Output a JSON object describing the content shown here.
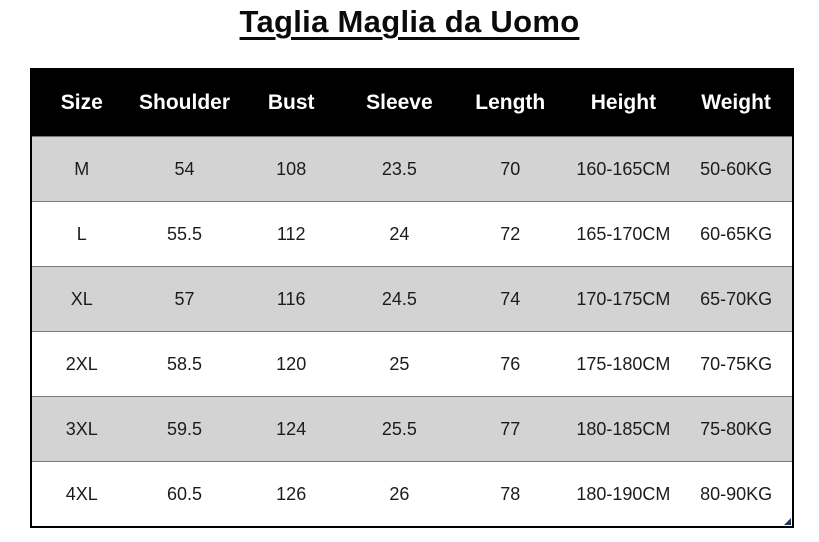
{
  "title": "Taglia Maglia da Uomo",
  "table": {
    "headers": [
      "Size",
      "Shoulder",
      "Bust",
      "Sleeve",
      "Length",
      "Height",
      "Weight"
    ],
    "rows": [
      [
        "M",
        "54",
        "108",
        "23.5",
        "70",
        "160-165CM",
        "50-60KG"
      ],
      [
        "L",
        "55.5",
        "112",
        "24",
        "72",
        "165-170CM",
        "60-65KG"
      ],
      [
        "XL",
        "57",
        "116",
        "24.5",
        "74",
        "170-175CM",
        "65-70KG"
      ],
      [
        "2XL",
        "58.5",
        "120",
        "25",
        "76",
        "175-180CM",
        "70-75KG"
      ],
      [
        "3XL",
        "59.5",
        "124",
        "25.5",
        "77",
        "180-185CM",
        "75-80KG"
      ],
      [
        "4XL",
        "60.5",
        "126",
        "26",
        "78",
        "180-190CM",
        "80-90KG"
      ]
    ]
  },
  "colors": {
    "header_bg": "#000000",
    "header_text": "#ffffff",
    "row_shaded_bg": "#d3d3d3",
    "row_plain_bg": "#ffffff",
    "cell_text": "#1c1c1c",
    "table_border": "#000000",
    "gridline": "#7a7a7a",
    "fill_handle": "#1f3864"
  }
}
